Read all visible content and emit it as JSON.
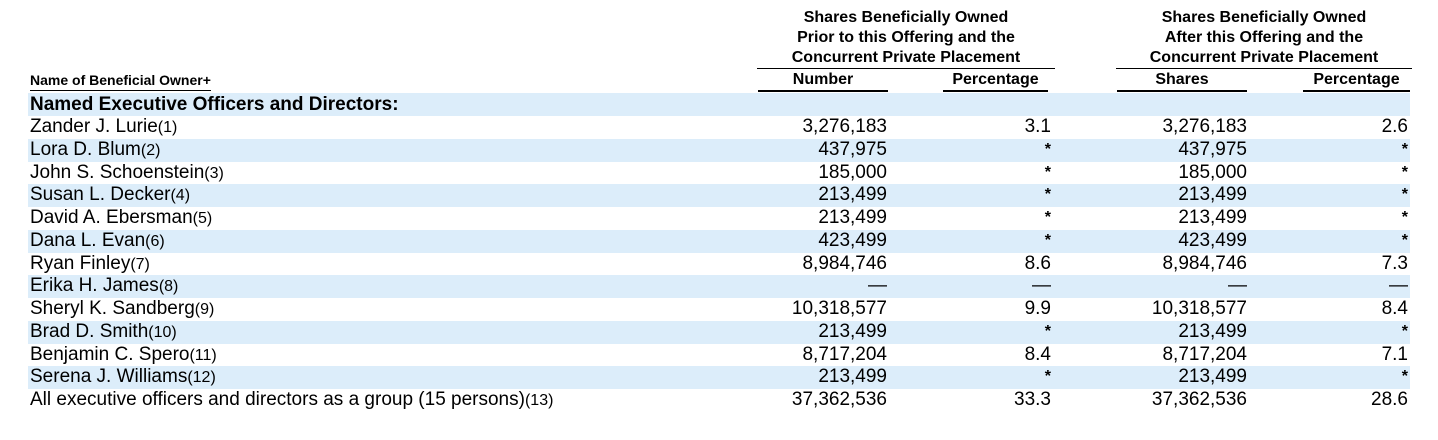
{
  "header": {
    "name_col": "Name of Beneficial Owner+",
    "prior_group": [
      "Shares Beneficially Owned",
      "Prior to this Offering and the",
      "Concurrent Private Placement"
    ],
    "after_group": [
      "Shares Beneficially Owned",
      "After this Offering and the",
      "Concurrent Private Placement"
    ],
    "prior_number": "Number",
    "prior_percentage": "Percentage",
    "after_shares": "Shares",
    "after_percentage": "Percentage"
  },
  "section_title": "Named Executive Officers and Directors:",
  "rows": [
    {
      "name": "Zander J. Lurie",
      "note": "(1)",
      "prior_number": "3,276,183",
      "prior_pct": "3.1",
      "after_shares": "3,276,183",
      "after_pct": "2.6"
    },
    {
      "name": "Lora D. Blum",
      "note": "(2)",
      "prior_number": "437,975",
      "prior_pct": "*",
      "after_shares": "437,975",
      "after_pct": "*"
    },
    {
      "name": "John S. Schoenstein",
      "note": "(3)",
      "prior_number": "185,000",
      "prior_pct": "*",
      "after_shares": "185,000",
      "after_pct": "*"
    },
    {
      "name": "Susan L. Decker",
      "note": "(4)",
      "prior_number": "213,499",
      "prior_pct": "*",
      "after_shares": "213,499",
      "after_pct": "*"
    },
    {
      "name": "David A. Ebersman",
      "note": "(5)",
      "prior_number": "213,499",
      "prior_pct": "*",
      "after_shares": "213,499",
      "after_pct": "*"
    },
    {
      "name": "Dana L. Evan",
      "note": "(6)",
      "prior_number": "423,499",
      "prior_pct": "*",
      "after_shares": "423,499",
      "after_pct": "*"
    },
    {
      "name": "Ryan Finley",
      "note": "(7)",
      "prior_number": "8,984,746",
      "prior_pct": "8.6",
      "after_shares": "8,984,746",
      "after_pct": "7.3"
    },
    {
      "name": "Erika H. James",
      "note": "(8)",
      "prior_number": "—",
      "prior_pct": "—",
      "after_shares": "—",
      "after_pct": "—"
    },
    {
      "name": "Sheryl K. Sandberg",
      "note": "(9)",
      "prior_number": "10,318,577",
      "prior_pct": "9.9",
      "after_shares": "10,318,577",
      "after_pct": "8.4"
    },
    {
      "name": "Brad D. Smith",
      "note": "(10)",
      "prior_number": "213,499",
      "prior_pct": "*",
      "after_shares": "213,499",
      "after_pct": "*"
    },
    {
      "name": "Benjamin C. Spero",
      "note": "(11)",
      "prior_number": "8,717,204",
      "prior_pct": "8.4",
      "after_shares": "8,717,204",
      "after_pct": "7.1"
    },
    {
      "name": "Serena J. Williams",
      "note": "(12)",
      "prior_number": "213,499",
      "prior_pct": "*",
      "after_shares": "213,499",
      "after_pct": "*"
    },
    {
      "name": "All executive officers and directors as a group (15 persons)",
      "note": "(13)",
      "prior_number": "37,362,536",
      "prior_pct": "33.3",
      "after_shares": "37,362,536",
      "after_pct": "28.6"
    }
  ]
}
